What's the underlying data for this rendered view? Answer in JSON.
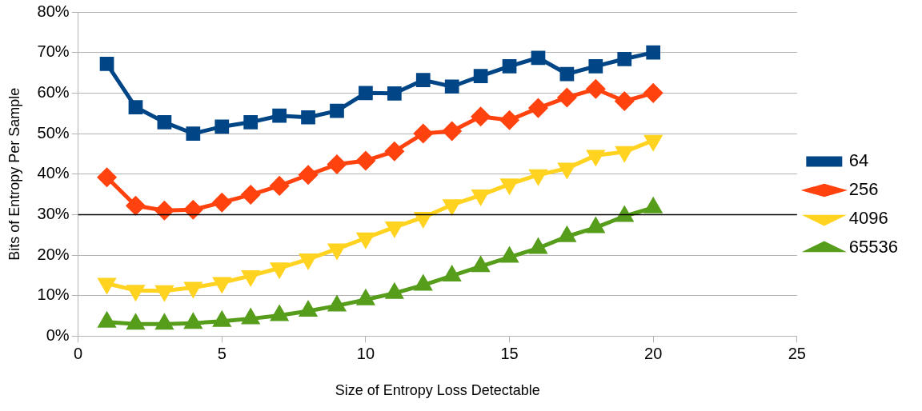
{
  "chart_data": {
    "type": "line",
    "xlabel": "Size of Entropy Loss Detectable",
    "ylabel": "Bits of Entropy Per Sample",
    "x": [
      1,
      2,
      3,
      4,
      5,
      6,
      7,
      8,
      9,
      10,
      11,
      12,
      13,
      14,
      15,
      16,
      17,
      18,
      19,
      20
    ],
    "series": [
      {
        "name": "64",
        "color": "#004586",
        "marker": "square",
        "values": [
          67.2,
          56.5,
          52.8,
          50,
          51.7,
          52.8,
          54.4,
          54,
          55.6,
          60,
          59.9,
          63.2,
          61.6,
          64.2,
          66.6,
          68.7,
          64.7,
          66.6,
          68.4,
          70
        ]
      },
      {
        "name": "256",
        "color": "#ff420e",
        "marker": "diamond",
        "values": [
          39.2,
          32.2,
          31,
          31.2,
          33,
          34.9,
          37.1,
          39.8,
          42.4,
          43.3,
          45.6,
          50,
          50.6,
          54.2,
          53.3,
          56.3,
          58.9,
          61,
          58,
          60
        ]
      },
      {
        "name": "4096",
        "color": "#ffd320",
        "marker": "triangle-down",
        "values": [
          13,
          11.3,
          11.2,
          12,
          13.2,
          14.9,
          16.8,
          19,
          21.5,
          24.2,
          26.9,
          29.3,
          32.4,
          34.8,
          37.5,
          39.8,
          41.4,
          44.6,
          45.5,
          48.3
        ]
      },
      {
        "name": "65536",
        "color": "#579d1c",
        "marker": "triangle",
        "values": [
          3.5,
          3,
          3,
          3.2,
          3.7,
          4.3,
          5.1,
          6.2,
          7.5,
          9,
          10.6,
          12.6,
          14.9,
          17.2,
          19.5,
          21.7,
          24.6,
          26.8,
          29.6,
          31.7
        ]
      }
    ],
    "xlim": [
      0,
      25
    ],
    "xticks": [
      0,
      5,
      10,
      15,
      20,
      25
    ],
    "ylim": [
      0,
      80
    ],
    "yticks": [
      {
        "value": 0,
        "label": "0%"
      },
      {
        "value": 10,
        "label": "10%"
      },
      {
        "value": 20,
        "label": "20%"
      },
      {
        "value": 30,
        "label": "30%"
      },
      {
        "value": 40,
        "label": "40%"
      },
      {
        "value": 50,
        "label": "50%"
      },
      {
        "value": 60,
        "label": "60%"
      },
      {
        "value": 70,
        "label": "70%"
      },
      {
        "value": 80,
        "label": "80%"
      }
    ],
    "grid": "y",
    "legend": "right",
    "line_style": "solid",
    "ref_lines": [
      {
        "axis": "y",
        "value": 30,
        "color": "#000000"
      }
    ]
  }
}
